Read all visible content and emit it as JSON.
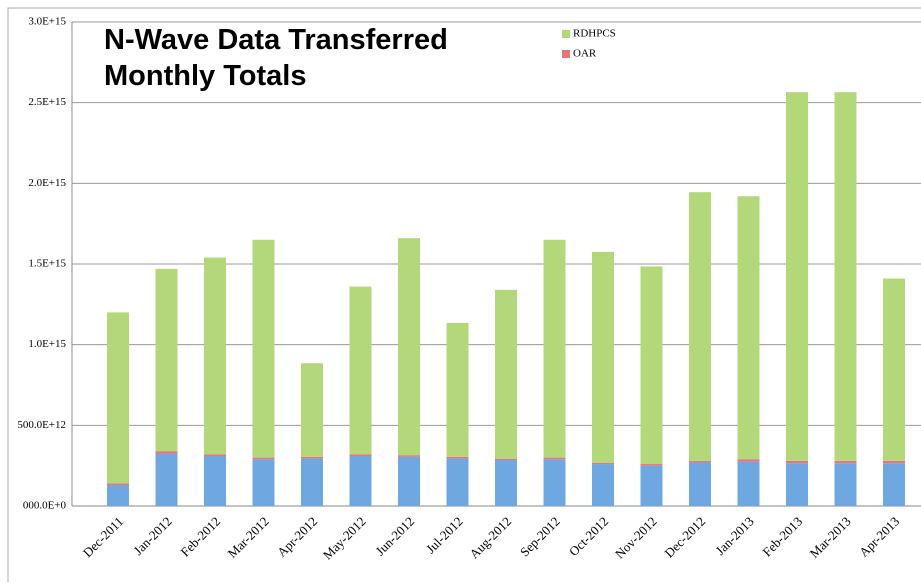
{
  "chart_data": {
    "type": "stacked_bar",
    "title": "N-Wave Data Transferred\nMonthly Totals",
    "categories": [
      "Dec-2011",
      "Jan-2012",
      "Feb-2012",
      "Mar-2012",
      "Apr-2012",
      "May-2012",
      "Jun-2012",
      "Jul-2012",
      "Aug-2012",
      "Sep-2012",
      "Oct-2012",
      "Nov-2012",
      "Dec-2012",
      "Jan-2013",
      "Feb-2013",
      "Mar-2013",
      "Apr-2013"
    ],
    "series": [
      {
        "color": "#6fa8e0",
        "values": [
          130000000000000.0,
          325000000000000.0,
          310000000000000.0,
          290000000000000.0,
          295000000000000.0,
          310000000000000.0,
          305000000000000.0,
          295000000000000.0,
          285000000000000.0,
          290000000000000.0,
          260000000000000.0,
          250000000000000.0,
          270000000000000.0,
          275000000000000.0,
          265000000000000.0,
          265000000000000.0,
          265000000000000.0
        ]
      },
      {
        "name": "OAR",
        "color": "#e8737a",
        "values": [
          10000000000000.0,
          15000000000000.0,
          10000000000000.0,
          10000000000000.0,
          10000000000000.0,
          10000000000000.0,
          10000000000000.0,
          10000000000000.0,
          8000000000000.0,
          10000000000000.0,
          8000000000000.0,
          10000000000000.0,
          10000000000000.0,
          15000000000000.0,
          15000000000000.0,
          15000000000000.0,
          15000000000000.0
        ]
      },
      {
        "name": "RDHPCS",
        "color": "#b2d87a",
        "values": [
          1060000000000000.0,
          1130000000000000.0,
          1220000000000000.0,
          1350000000000000.0,
          580000000000000.0,
          1040000000000000.0,
          1345000000000000.0,
          830000000000000.0,
          1047000000000000.0,
          1350000000000000.0,
          1307000000000000.0,
          1225000000000000.0,
          1665000000000000.0,
          1630000000000000.0,
          2285000000000000.0,
          2285000000000000.0,
          1130000000000000.0
        ]
      }
    ],
    "ylim": [
      0,
      3000000000000000.0
    ],
    "yticks": [
      {
        "value": 0,
        "label": "000.0E+0"
      },
      {
        "value": 500000000000000.0,
        "label": "500.0E+12"
      },
      {
        "value": 1000000000000000.0,
        "label": "1.0E+15"
      },
      {
        "value": 1500000000000000.0,
        "label": "1.5E+15"
      },
      {
        "value": 2000000000000000.0,
        "label": "2.0E+15"
      },
      {
        "value": 2500000000000000.0,
        "label": "2.5E+15"
      },
      {
        "value": 3000000000000000.0,
        "label": "3.0E+15"
      }
    ],
    "grid": true
  }
}
